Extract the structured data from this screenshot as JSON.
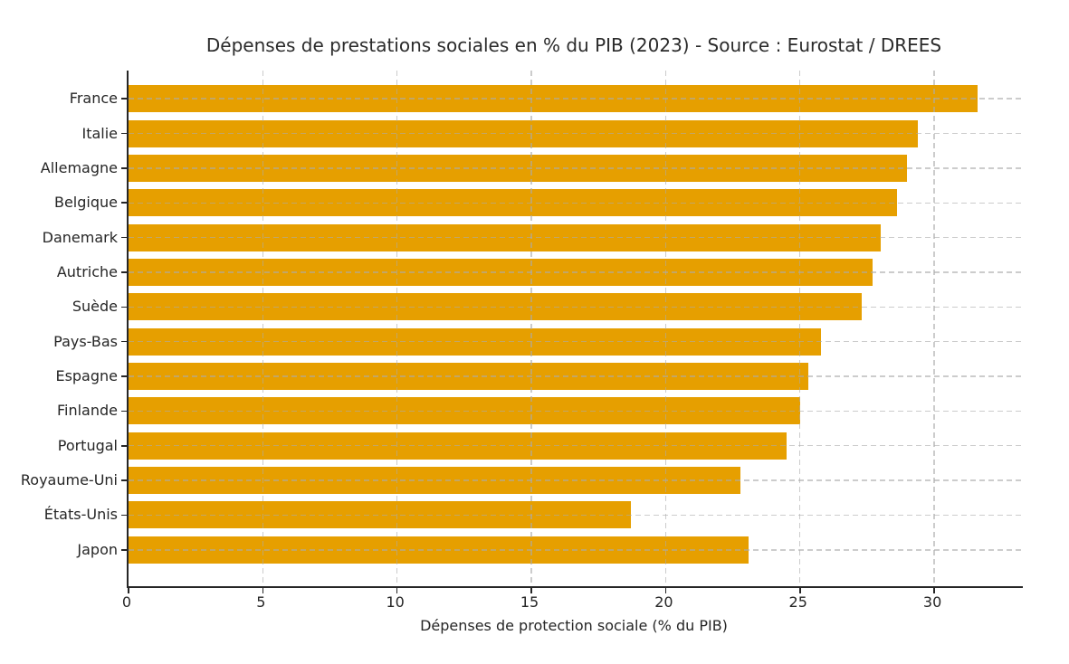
{
  "chart_data": {
    "type": "bar",
    "orientation": "horizontal",
    "title": "Dépenses de prestations sociales en % du PIB (2023) - Source : Eurostat / DREES",
    "xlabel": "Dépenses de protection sociale (% du PIB)",
    "ylabel": "",
    "categories": [
      "France",
      "Italie",
      "Allemagne",
      "Belgique",
      "Danemark",
      "Autriche",
      "Suède",
      "Pays-Bas",
      "Espagne",
      "Finlande",
      "Portugal",
      "Royaume-Uni",
      "États-Unis",
      "Japon"
    ],
    "values": [
      31.6,
      29.4,
      29.0,
      28.6,
      28.0,
      27.7,
      27.3,
      25.8,
      25.3,
      25.0,
      24.5,
      22.8,
      18.7,
      23.1
    ],
    "xticks": [
      0,
      5,
      10,
      15,
      20,
      25,
      30
    ],
    "xlim": [
      0,
      33.3
    ],
    "grid": "dashed vertical and horizontal gridlines, drawn above bars",
    "legend": null,
    "colors": {
      "bar": "#E69F00",
      "grid": "#c9c9c9",
      "axis": "#262626",
      "text": "#262626",
      "background": "#ffffff"
    }
  }
}
